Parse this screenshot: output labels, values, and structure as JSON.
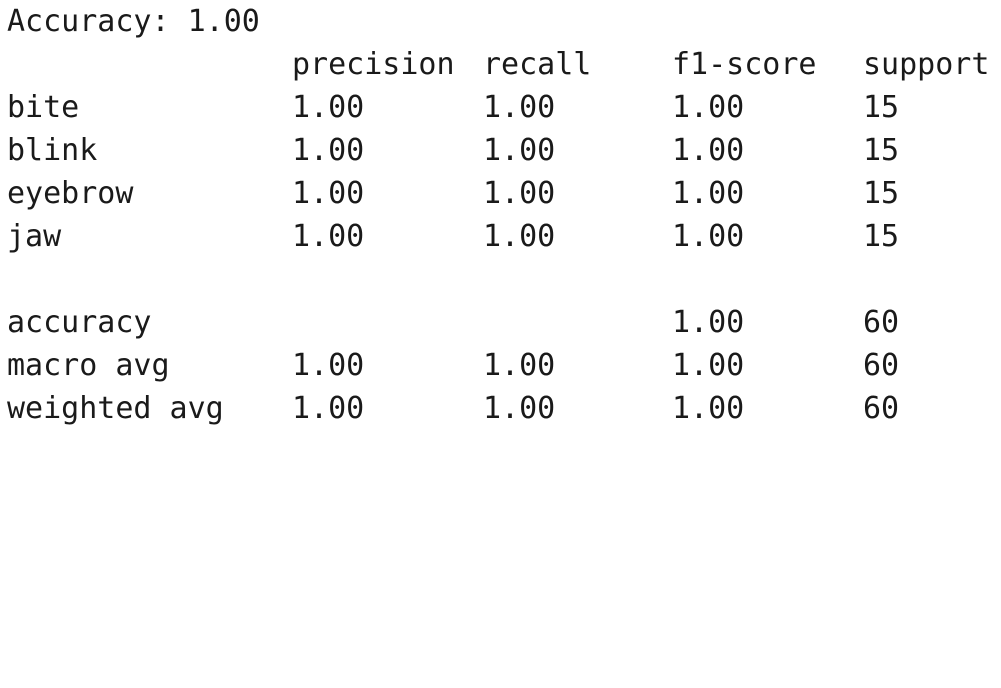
{
  "accuracy_line": "Accuracy: 1.00",
  "headers": [
    "precision",
    "recall",
    "f1-score",
    "support"
  ],
  "rows": [
    {
      "label": "bite",
      "precision": "1.00",
      "recall": "1.00",
      "f1": "1.00",
      "support": "15"
    },
    {
      "label": "blink",
      "precision": "1.00",
      "recall": "1.00",
      "f1": "1.00",
      "support": "15"
    },
    {
      "label": "eyebrow",
      "precision": "1.00",
      "recall": "1.00",
      "f1": "1.00",
      "support": "15"
    },
    {
      "label": "jaw",
      "precision": "1.00",
      "recall": "1.00",
      "f1": "1.00",
      "support": "15"
    }
  ],
  "summary": [
    {
      "label": "accuracy",
      "precision": "",
      "recall": "",
      "f1": "1.00",
      "support": "60"
    },
    {
      "label": "macro avg",
      "precision": "1.00",
      "recall": "1.00",
      "f1": "1.00",
      "support": "60"
    },
    {
      "label": "weighted avg",
      "precision": "1.00",
      "recall": "1.00",
      "f1": "1.00",
      "support": "60"
    }
  ]
}
